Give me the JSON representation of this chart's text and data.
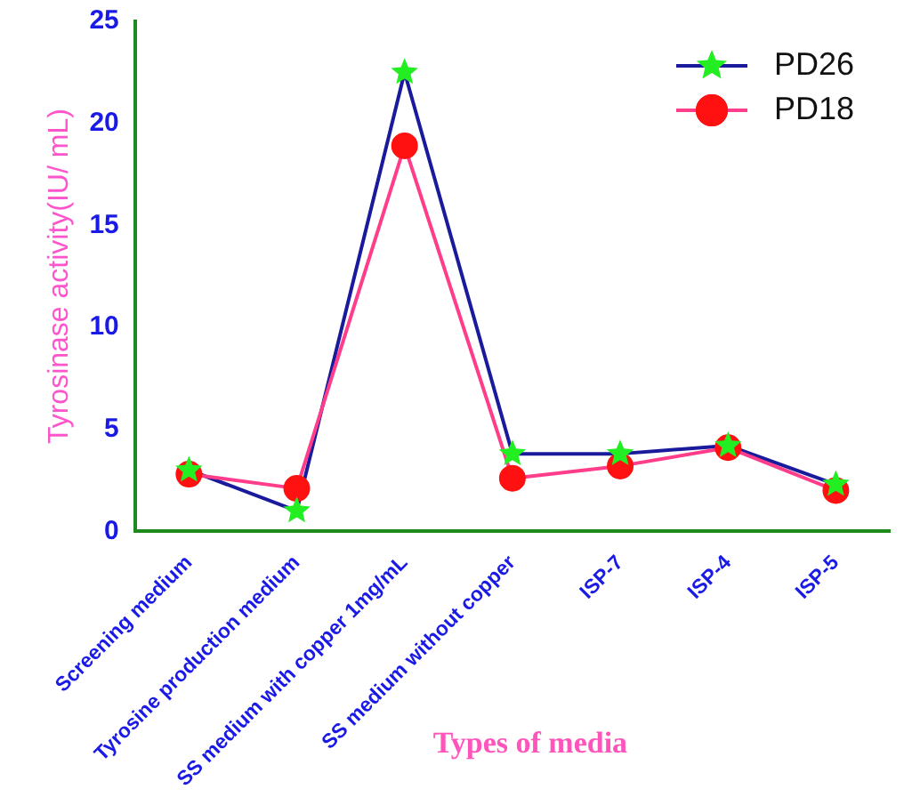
{
  "chart_data": {
    "type": "line",
    "xlabel": "Types of media",
    "ylabel": "Tyrosinase activity(IU/ mL)",
    "categories": [
      "Screening medium",
      "Tyrosine production medium",
      "SS medium with copper 1mg/mL",
      "SS medium without copper",
      "ISP-7",
      "ISP-4",
      "ISP-5"
    ],
    "series": [
      {
        "name": "PD26",
        "color": "#1a1a9c",
        "colors": [
          "#22ee22",
          "#22ee22",
          "#22ee22",
          "#22ee22",
          "#22ee22",
          "#22ee22",
          "#22ee22"
        ],
        "marker": "star",
        "values": [
          3.0,
          1.0,
          22.5,
          3.8,
          3.8,
          4.2,
          2.3
        ]
      },
      {
        "name": "PD18",
        "color": "#ff3d8a",
        "colors": [
          "#ff1111",
          "#ff1111",
          "#ff1111",
          "#ff1111",
          "#ff1111",
          "#ff1111",
          "#ff1111"
        ],
        "marker": "circle",
        "values": [
          2.8,
          2.1,
          18.9,
          2.6,
          3.2,
          4.1,
          2.0
        ]
      }
    ],
    "ylim": [
      0,
      25
    ],
    "yticks": [
      0,
      5,
      10,
      15,
      20,
      25
    ],
    "grid": false,
    "legend": "top right",
    "line_style": "solid"
  }
}
